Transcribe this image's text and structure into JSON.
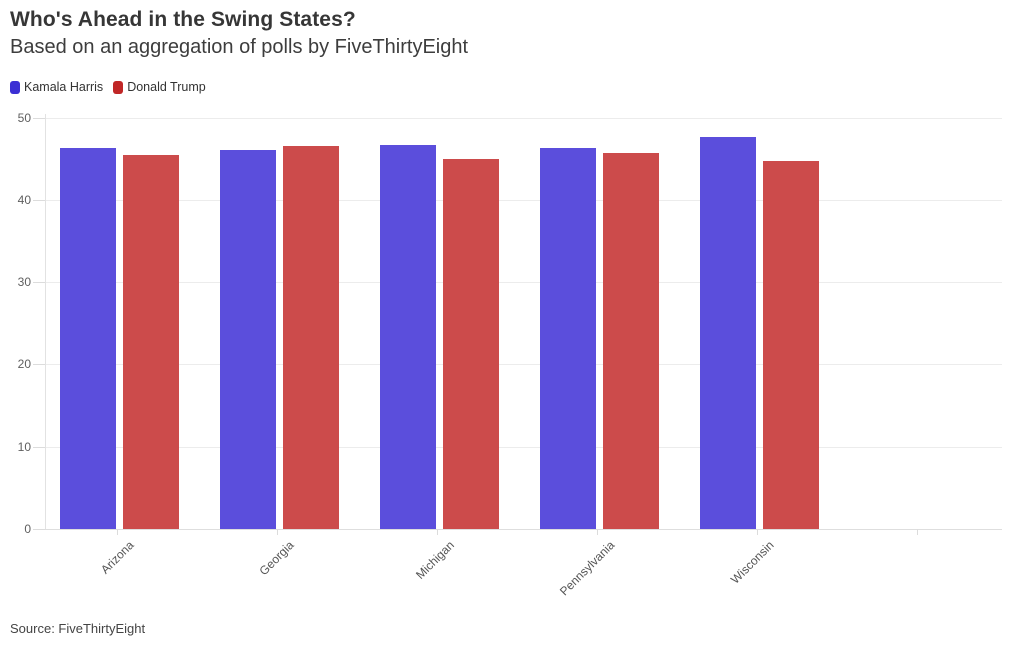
{
  "header": {
    "title": "Who's Ahead in the Swing States?",
    "subtitle": "Based on an aggregation of polls by FiveThirtyEight"
  },
  "legend": {
    "items": [
      {
        "label": "Kamala Harris",
        "swatch_color": "#3b2fd4"
      },
      {
        "label": "Donald Trump",
        "swatch_color": "#c02626"
      }
    ]
  },
  "footer": {
    "source": "Source: FiveThirtyEight"
  },
  "chart_data": {
    "type": "bar",
    "title": "Who's Ahead in the Swing States?",
    "subtitle": "Based on an aggregation of polls by FiveThirtyEight",
    "categories": [
      "Arizona",
      "Georgia",
      "Michigan",
      "Pennsylvania",
      "Wisconsin"
    ],
    "series": [
      {
        "name": "Kamala Harris",
        "color": "#5b4edc",
        "values": [
          46.3,
          46.0,
          46.7,
          46.3,
          47.6
        ]
      },
      {
        "name": "Donald Trump",
        "color": "#cc4b4b",
        "values": [
          45.5,
          46.5,
          45.0,
          45.7,
          44.7
        ]
      }
    ],
    "ylim": [
      0,
      50
    ],
    "yticks": [
      0,
      10,
      20,
      30,
      40,
      50
    ],
    "grid": "horizontal-only",
    "legend_position": "top-left",
    "x_tick_label_angle": 45,
    "xlabel": "",
    "ylabel": "",
    "source": "Source: FiveThirtyEight"
  }
}
